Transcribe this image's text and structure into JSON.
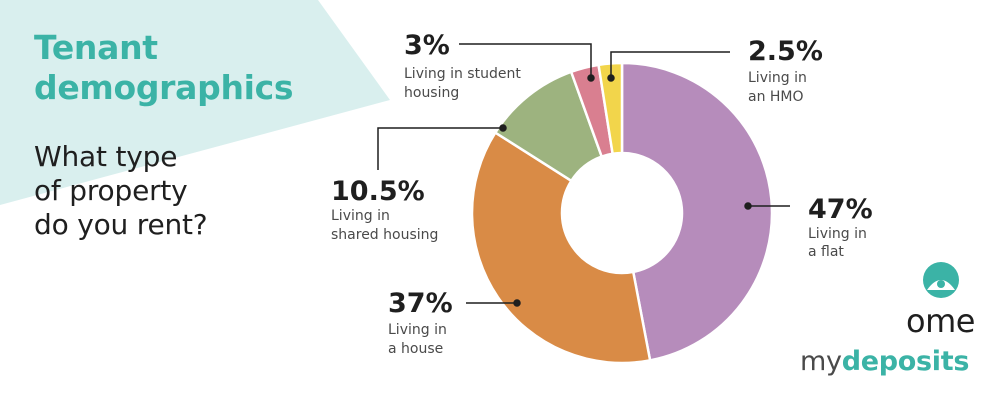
{
  "header": {
    "title_line1": "Tenant",
    "title_line2": "demographics",
    "question_line1": "What type",
    "question_line2": "of property",
    "question_line3": "do you rent?"
  },
  "chart_data": {
    "type": "pie",
    "variant": "donut",
    "slices": [
      {
        "value": 47,
        "pct_label": "47%",
        "desc_line1": "Living in",
        "desc_line2": "a flat",
        "color": "#b68cbb"
      },
      {
        "value": 37,
        "pct_label": "37%",
        "desc_line1": "Living in",
        "desc_line2": "a house",
        "color": "#d98b46"
      },
      {
        "value": 10.5,
        "pct_label": "10.5%",
        "desc_line1": "Living in",
        "desc_line2": "shared housing",
        "color": "#9db37f"
      },
      {
        "value": 3,
        "pct_label": "3%",
        "desc_line1": "Living in student",
        "desc_line2": "housing",
        "color": "#d97f90"
      },
      {
        "value": 2.5,
        "pct_label": "2.5%",
        "desc_line1": "Living in",
        "desc_line2": "an HMO",
        "color": "#f2d54b"
      }
    ]
  },
  "brand": {
    "ome": "ome",
    "my": "my",
    "deposits": "deposits",
    "accent": "#3bb3a6"
  }
}
